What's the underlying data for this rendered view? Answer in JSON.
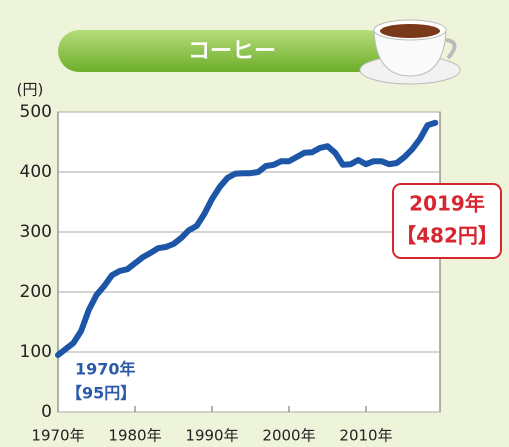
{
  "chart_data": {
    "type": "line",
    "title": "コーヒー",
    "y_label": "(円)",
    "x": [
      1970,
      1971,
      1972,
      1973,
      1974,
      1975,
      1976,
      1977,
      1978,
      1979,
      1980,
      1981,
      1982,
      1983,
      1984,
      1985,
      1986,
      1987,
      1988,
      1989,
      1990,
      1991,
      1992,
      1993,
      1994,
      1995,
      1996,
      1997,
      1998,
      1999,
      2000,
      2001,
      2002,
      2003,
      2004,
      2005,
      2006,
      2007,
      2008,
      2009,
      2010,
      2011,
      2012,
      2013,
      2014,
      2015,
      2016,
      2017,
      2018,
      2019
    ],
    "series": [
      {
        "color": "#1d56a6",
        "values": [
          95,
          105,
          115,
          135,
          170,
          195,
          210,
          228,
          235,
          238,
          248,
          258,
          265,
          273,
          275,
          280,
          290,
          303,
          310,
          330,
          355,
          375,
          390,
          397,
          398,
          398,
          400,
          410,
          412,
          418,
          418,
          425,
          432,
          433,
          440,
          443,
          432,
          412,
          413,
          420,
          413,
          418,
          418,
          413,
          415,
          425,
          438,
          455,
          478,
          482
        ]
      }
    ],
    "xlim": [
      1970,
      2020
    ],
    "ylim": [
      0,
      500
    ],
    "xticks": [
      {
        "value": 1970,
        "label": "1970年"
      },
      {
        "value": 1980,
        "label": "1980年"
      },
      {
        "value": 1990,
        "label": "1990年"
      },
      {
        "value": 2000,
        "label": "2000年"
      },
      {
        "value": 2010,
        "label": "2010年"
      }
    ],
    "yticks": [
      0,
      100,
      200,
      300,
      400,
      500
    ],
    "grid": true,
    "annotations": [
      {
        "year": "1970年",
        "price": "【95円】"
      },
      {
        "year": "2019年",
        "price": "【482円】"
      }
    ]
  }
}
